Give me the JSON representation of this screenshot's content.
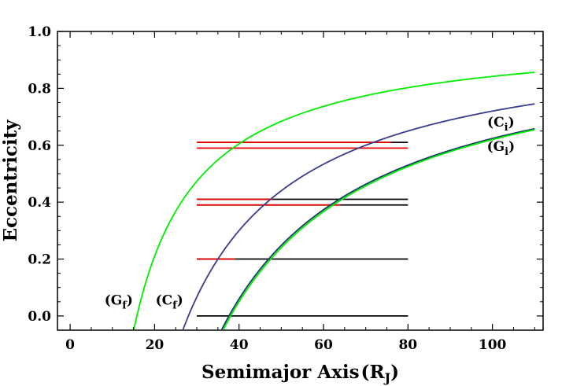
{
  "chart_data": {
    "type": "line",
    "title": "",
    "xlabel": "Semimajor Axis",
    "xlabel_unit": "R",
    "xlabel_unit_sub": "J",
    "ylabel": "Eccentricity",
    "xlim": [
      -3,
      112
    ],
    "ylim": [
      -0.05,
      1.0
    ],
    "x_ticks": [
      0,
      20,
      40,
      60,
      80,
      100
    ],
    "x_tick_labels": [
      "0",
      "20",
      "40",
      "60",
      "80",
      "100"
    ],
    "y_ticks": [
      0.0,
      0.2,
      0.4,
      0.6,
      0.8,
      1.0
    ],
    "y_tick_labels": [
      "0.0",
      "0.2",
      "0.4",
      "0.6",
      "0.8",
      "1.0"
    ],
    "grid": false,
    "curves": [
      {
        "label": "Gf",
        "color": "#00ee00",
        "periapsis": 15.8,
        "x_end": 110
      },
      {
        "label": "Cf",
        "color": "#3b3b8f",
        "periapsis": 28.0,
        "x_end": 110
      },
      {
        "label": "Ci",
        "color": "#1a3a6a",
        "periapsis": 37.6,
        "x_end": 110
      },
      {
        "label": "Gi",
        "color": "#00ee00",
        "periapsis": 38.0,
        "x_end": 110
      }
    ],
    "segments": [
      {
        "y": 0.0,
        "x_start": 30,
        "x_end": 80,
        "color": "#000000"
      },
      {
        "y": 0.2,
        "x_start": 30,
        "x_end": 80,
        "color": "#000000"
      },
      {
        "y": 0.2,
        "x_start": 30,
        "x_end": 39,
        "color": "#ee0000"
      },
      {
        "y": 0.39,
        "x_start": 30,
        "x_end": 80,
        "color": "#000000"
      },
      {
        "y": 0.39,
        "x_start": 30,
        "x_end": 64,
        "color": "#ee0000"
      },
      {
        "y": 0.41,
        "x_start": 30,
        "x_end": 80,
        "color": "#000000"
      },
      {
        "y": 0.41,
        "x_start": 30,
        "x_end": 48,
        "color": "#ee0000"
      },
      {
        "y": 0.59,
        "x_start": 30,
        "x_end": 80,
        "color": "#ee0000"
      },
      {
        "y": 0.61,
        "x_start": 30,
        "x_end": 80,
        "color": "#000000"
      },
      {
        "y": 0.61,
        "x_start": 30,
        "x_end": 76,
        "color": "#ee0000"
      }
    ],
    "annotations": [
      {
        "main": "G",
        "sub": "f",
        "x": 11.5,
        "y": 0.04
      },
      {
        "main": "C",
        "sub": "f",
        "x": 23.5,
        "y": 0.04
      },
      {
        "main": "C",
        "sub": "i",
        "x": 102,
        "y": 0.665
      },
      {
        "main": "G",
        "sub": "i",
        "x": 102,
        "y": 0.58
      }
    ]
  }
}
